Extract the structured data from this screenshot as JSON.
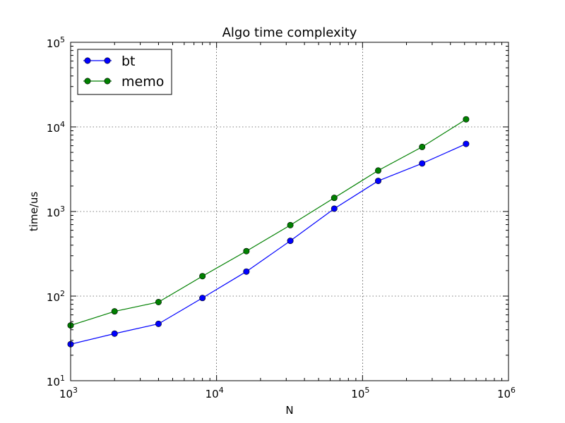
{
  "chart_data": {
    "type": "line",
    "title": "Algo time complexity",
    "xlabel": "N",
    "ylabel": "time/us",
    "xscale": "log",
    "yscale": "log",
    "xlim": [
      1000,
      1000000
    ],
    "ylim": [
      10,
      100000
    ],
    "grid": true,
    "legend_position": "top-left",
    "x_ticks": [
      {
        "value": 1000,
        "base": "10",
        "exp": "3"
      },
      {
        "value": 10000,
        "base": "10",
        "exp": "4"
      },
      {
        "value": 100000,
        "base": "10",
        "exp": "5"
      },
      {
        "value": 1000000,
        "base": "10",
        "exp": "6"
      }
    ],
    "y_ticks": [
      {
        "value": 10,
        "base": "10",
        "exp": "1"
      },
      {
        "value": 100,
        "base": "10",
        "exp": "2"
      },
      {
        "value": 1000,
        "base": "10",
        "exp": "3"
      },
      {
        "value": 10000,
        "base": "10",
        "exp": "4"
      },
      {
        "value": 100000,
        "base": "10",
        "exp": "5"
      }
    ],
    "x": [
      1000,
      2000,
      4000,
      8000,
      16000,
      32000,
      64000,
      128000,
      256000,
      512000
    ],
    "series": [
      {
        "name": "bt",
        "color": "#0000ff",
        "values": [
          27,
          36,
          47,
          95,
          195,
          450,
          1080,
          2300,
          3700,
          6300
        ]
      },
      {
        "name": "memo",
        "color": "#008000",
        "values": [
          45,
          66,
          85,
          172,
          340,
          690,
          1450,
          3050,
          5800,
          12300
        ]
      }
    ]
  }
}
